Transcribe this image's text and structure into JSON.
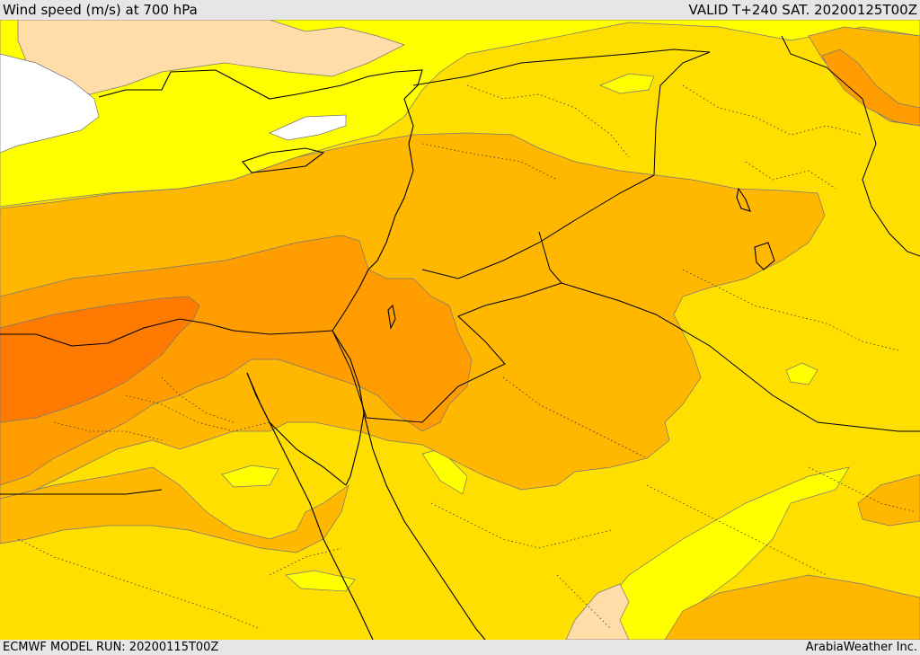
{
  "header": {
    "title": "Wind speed (m/s) at 700 hPa",
    "valid": "VALID T+240 SAT. 20200125T00Z"
  },
  "footer": {
    "model_run": "ECMWF MODEL RUN: 20200115T00Z",
    "credit": "ArabiaWeather Inc."
  },
  "map": {
    "region": "Eastern Mediterranean and Middle East",
    "variable": "wind speed",
    "level": "700 hPa",
    "colors": {
      "white": "#ffffff",
      "peach": "#ffdca8",
      "light_yellow": "#ffff00",
      "yellow": "#ffdf00",
      "amber": "#ffb700",
      "orange": "#ff9d00",
      "dark_orange": "#ff7a00"
    }
  }
}
